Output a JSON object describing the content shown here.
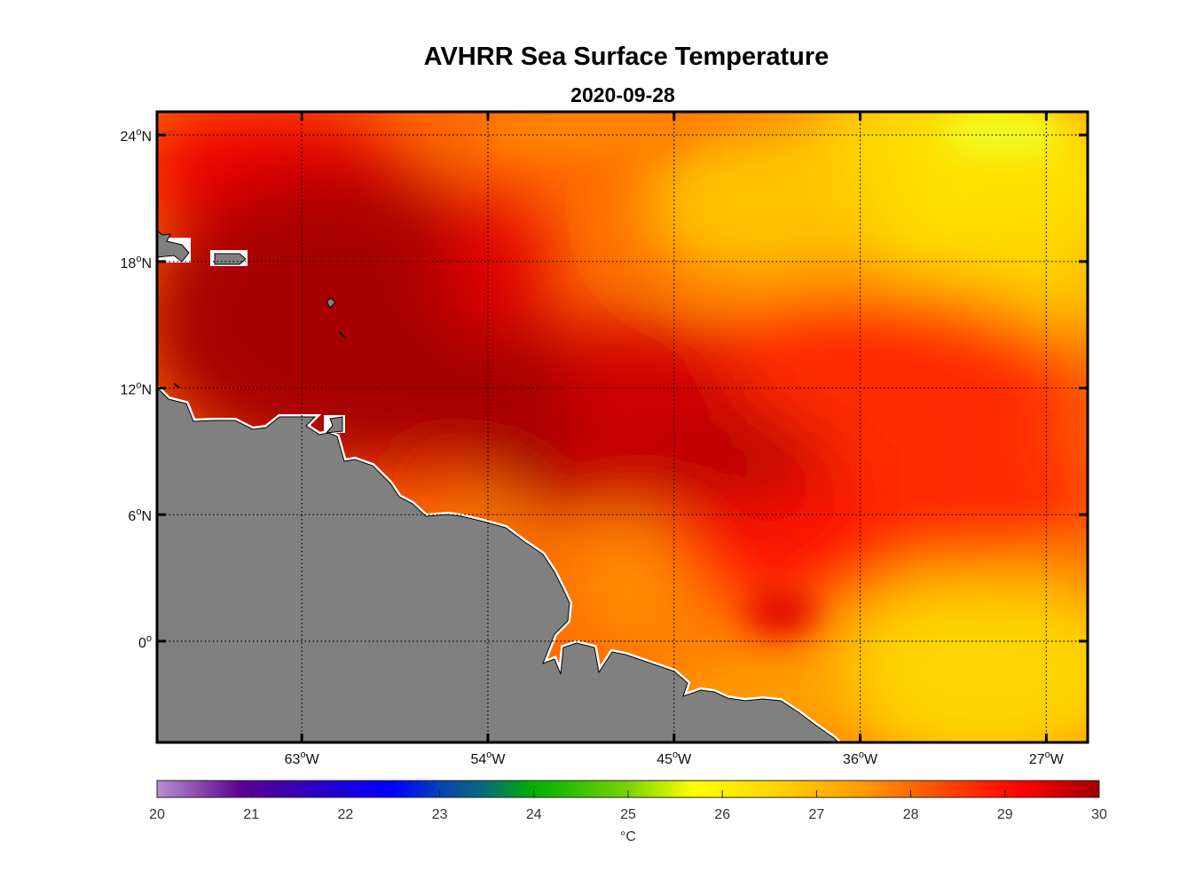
{
  "title": "AVHRR Sea Surface Temperature",
  "date": "2020-09-28",
  "map": {
    "lon_range": [
      -70,
      -25
    ],
    "lat_range": [
      -4.8,
      25.1
    ],
    "lon_ticks": [
      {
        "value": -63,
        "label": "63",
        "suffix": "W"
      },
      {
        "value": -54,
        "label": "54",
        "suffix": "W"
      },
      {
        "value": -45,
        "label": "45",
        "suffix": "W"
      },
      {
        "value": -36,
        "label": "36",
        "suffix": "W"
      },
      {
        "value": -27,
        "label": "27",
        "suffix": "W"
      }
    ],
    "lat_ticks": [
      {
        "value": 24,
        "label": "24",
        "suffix": "N"
      },
      {
        "value": 18,
        "label": "18",
        "suffix": "N"
      },
      {
        "value": 12,
        "label": "12",
        "suffix": "N"
      },
      {
        "value": 6,
        "label": "6",
        "suffix": "N"
      },
      {
        "value": 0,
        "label": "0",
        "suffix": ""
      }
    ],
    "degree_mark": "o",
    "land_color": "#808080"
  },
  "colorbar": {
    "min": 20,
    "max": 30,
    "ticks": [
      "20",
      "21",
      "22",
      "23",
      "24",
      "25",
      "26",
      "27",
      "28",
      "29",
      "30"
    ],
    "unit": "°C",
    "stops": [
      {
        "v": 20,
        "c": "#b890cc"
      },
      {
        "v": 20.9,
        "c": "#5c0090"
      },
      {
        "v": 21.6,
        "c": "#3000c0"
      },
      {
        "v": 22.5,
        "c": "#0000ff"
      },
      {
        "v": 23,
        "c": "#0a40b8"
      },
      {
        "v": 23.5,
        "c": "#067070"
      },
      {
        "v": 24,
        "c": "#00b000"
      },
      {
        "v": 25,
        "c": "#7ad400"
      },
      {
        "v": 25.7,
        "c": "#ffff00"
      },
      {
        "v": 26.5,
        "c": "#ffd800"
      },
      {
        "v": 27.5,
        "c": "#ff9a00"
      },
      {
        "v": 28.5,
        "c": "#ff3a00"
      },
      {
        "v": 29.2,
        "c": "#ff0000"
      },
      {
        "v": 30,
        "c": "#a00000"
      }
    ]
  }
}
